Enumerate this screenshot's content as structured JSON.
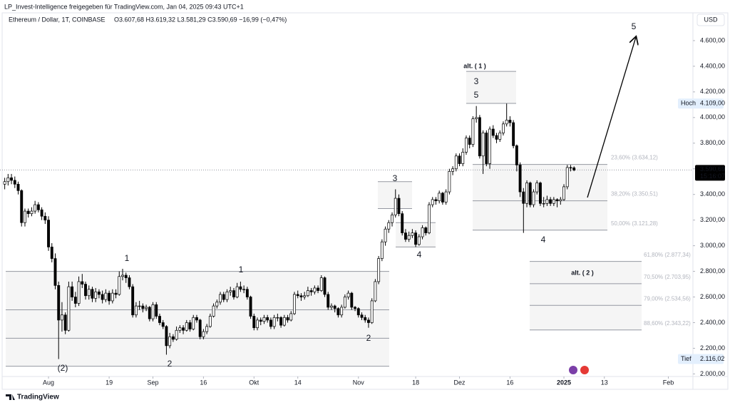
{
  "header": {
    "publisher": "LP_Invest-Intelligence freigegeben für TradingView.com, Jan 04, 2025 09:43 UTC+1",
    "footer": "TradingView"
  },
  "chart_data": {
    "type": "candlestick",
    "title": "Ethereum / Dollar, 1T, COINBASE",
    "ohlc_text": "O3.607,68  H3.619,32  L3.581,29  C3.590,69  −16,99 (−0,47%)",
    "currency": "USD",
    "up_color": "#ffffff",
    "down_color": "#000000",
    "outline_color": "#000000",
    "xlim": [
      -1.4,
      204.3
    ],
    "xticks": [
      {
        "value": 13,
        "label": "Aug"
      },
      {
        "value": 31,
        "label": "19"
      },
      {
        "value": 44,
        "label": "Sep"
      },
      {
        "value": 59,
        "label": "16"
      },
      {
        "value": 74,
        "label": "Okt"
      },
      {
        "value": 87,
        "label": "14"
      },
      {
        "value": 105,
        "label": "Nov"
      },
      {
        "value": 122,
        "label": "18"
      },
      {
        "value": 135,
        "label": "Dez"
      },
      {
        "value": 150,
        "label": "16"
      },
      {
        "value": 166,
        "label": "2025"
      },
      {
        "value": 178,
        "label": "13"
      },
      {
        "value": 197,
        "label": "Feb"
      }
    ],
    "ylim": [
      1980,
      4800
    ],
    "yticks": [
      {
        "value": 2000,
        "label": "2.000,00"
      },
      {
        "value": 2200,
        "label": "2.200,00"
      },
      {
        "value": 2400,
        "label": "2.400,00"
      },
      {
        "value": 2600,
        "label": "2.600,00"
      },
      {
        "value": 2800,
        "label": "2.800,00"
      },
      {
        "value": 3000,
        "label": "3.000,00"
      },
      {
        "value": 3200,
        "label": "3.200,00"
      },
      {
        "value": 3400,
        "label": "3.400,00"
      },
      {
        "value": 3600,
        "label": "3.600,00"
      },
      {
        "value": 3800,
        "label": "3.800,00"
      },
      {
        "value": 4000,
        "label": "4.000,00"
      },
      {
        "value": 4200,
        "label": "4.200,00"
      },
      {
        "value": 4400,
        "label": "4.400,00"
      },
      {
        "value": 4600,
        "label": "4.600,00"
      }
    ],
    "high": {
      "label": "Hoch",
      "value": 4109,
      "value_label": "4.109,00"
    },
    "low": {
      "label": "Tief",
      "value": 2116.02,
      "value_label": "2.116,02"
    },
    "last": {
      "value": 3590.69,
      "value_label": "3.590,69",
      "countdown": "15:16:07"
    },
    "fib_levels": [
      {
        "value": 3634.12,
        "label": "23,60% (3.634,12)"
      },
      {
        "value": 3350.51,
        "label": "38,20% (3.350,51)"
      },
      {
        "value": 3121.28,
        "label": "50,00% (3.121,28)"
      },
      {
        "value": 2877.34,
        "label": "61,80% (2.877,34)"
      },
      {
        "value": 2703.95,
        "label": "70,50% (2.703,95)"
      },
      {
        "value": 2534.56,
        "label": "79,00% (2.534,56)"
      },
      {
        "value": 2343.22,
        "label": "88,60% (2.343,22)"
      }
    ],
    "zones": [
      [
        2800,
        2500,
        2278,
        2060
      ],
      [
        3500,
        3290
      ],
      [
        3180,
        2990
      ],
      [
        4360,
        4110
      ]
    ],
    "annotations": [
      {
        "text": "(2)",
        "color": "#7b3fa8"
      },
      {
        "text": "1",
        "color": "#e53935"
      },
      {
        "text": "2",
        "color": "#e53935"
      },
      {
        "text": "1",
        "color": "#f59c1a"
      },
      {
        "text": "2",
        "color": "#f59c1a"
      },
      {
        "text": "3",
        "color": "#f59c1a"
      },
      {
        "text": "4",
        "color": "#f59c1a"
      },
      {
        "text": "alt. ( 1 )",
        "color": "#555555"
      },
      {
        "text": "3",
        "color": "#e53935"
      },
      {
        "text": "5",
        "color": "#f59c1a"
      },
      {
        "text": "4",
        "color": "#e53935"
      },
      {
        "text": "5",
        "color": "#e53935"
      },
      {
        "text": "alt. ( 2 )",
        "color": "#555555"
      }
    ],
    "candles": [
      [
        3480,
        3530,
        3440,
        3500
      ],
      [
        3500,
        3560,
        3470,
        3530
      ],
      [
        3530,
        3560,
        3480,
        3510
      ],
      [
        3510,
        3540,
        3450,
        3480
      ],
      [
        3480,
        3500,
        3400,
        3430
      ],
      [
        3430,
        3440,
        3150,
        3180
      ],
      [
        3180,
        3290,
        3150,
        3270
      ],
      [
        3270,
        3290,
        3220,
        3250
      ],
      [
        3250,
        3300,
        3230,
        3270
      ],
      [
        3270,
        3350,
        3250,
        3320
      ],
      [
        3320,
        3340,
        3260,
        3280
      ],
      [
        3280,
        3300,
        3200,
        3230
      ],
      [
        3230,
        3260,
        3170,
        3200
      ],
      [
        3200,
        3230,
        2960,
        2990
      ],
      [
        2990,
        3020,
        2870,
        2900
      ],
      [
        2900,
        2940,
        2660,
        2690
      ],
      [
        2690,
        2720,
        2116.02,
        2420
      ],
      [
        2420,
        2560,
        2330,
        2460
      ],
      [
        2460,
        2480,
        2310,
        2340
      ],
      [
        2340,
        2720,
        2330,
        2680
      ],
      [
        2680,
        2720,
        2570,
        2600
      ],
      [
        2600,
        2640,
        2520,
        2550
      ],
      [
        2550,
        2760,
        2530,
        2720
      ],
      [
        2720,
        2780,
        2670,
        2700
      ],
      [
        2700,
        2720,
        2580,
        2610
      ],
      [
        2610,
        2690,
        2580,
        2660
      ],
      [
        2660,
        2680,
        2560,
        2590
      ],
      [
        2590,
        2670,
        2560,
        2640
      ],
      [
        2640,
        2660,
        2590,
        2620
      ],
      [
        2620,
        2650,
        2550,
        2580
      ],
      [
        2580,
        2660,
        2560,
        2630
      ],
      [
        2630,
        2650,
        2540,
        2570
      ],
      [
        2570,
        2660,
        2550,
        2630
      ],
      [
        2630,
        2660,
        2590,
        2620
      ],
      [
        2620,
        2800,
        2610,
        2760
      ],
      [
        2760,
        2820,
        2730,
        2770
      ],
      [
        2770,
        2790,
        2710,
        2750
      ],
      [
        2750,
        2770,
        2660,
        2680
      ],
      [
        2680,
        2700,
        2440,
        2460
      ],
      [
        2460,
        2560,
        2440,
        2530
      ],
      [
        2530,
        2570,
        2500,
        2530
      ],
      [
        2530,
        2550,
        2480,
        2510
      ],
      [
        2510,
        2540,
        2490,
        2520
      ],
      [
        2520,
        2530,
        2410,
        2430
      ],
      [
        2430,
        2560,
        2410,
        2540
      ],
      [
        2540,
        2560,
        2430,
        2450
      ],
      [
        2450,
        2470,
        2380,
        2400
      ],
      [
        2400,
        2420,
        2350,
        2370
      ],
      [
        2370,
        2380,
        2150,
        2220
      ],
      [
        2220,
        2320,
        2200,
        2290
      ],
      [
        2290,
        2310,
        2250,
        2270
      ],
      [
        2270,
        2370,
        2260,
        2340
      ],
      [
        2340,
        2380,
        2320,
        2360
      ],
      [
        2360,
        2380,
        2310,
        2340
      ],
      [
        2340,
        2420,
        2330,
        2400
      ],
      [
        2400,
        2420,
        2330,
        2350
      ],
      [
        2350,
        2460,
        2340,
        2440
      ],
      [
        2440,
        2460,
        2400,
        2420
      ],
      [
        2420,
        2430,
        2270,
        2290
      ],
      [
        2290,
        2350,
        2270,
        2330
      ],
      [
        2330,
        2390,
        2310,
        2370
      ],
      [
        2370,
        2470,
        2360,
        2450
      ],
      [
        2450,
        2550,
        2440,
        2530
      ],
      [
        2530,
        2580,
        2510,
        2560
      ],
      [
        2560,
        2640,
        2540,
        2620
      ],
      [
        2620,
        2640,
        2560,
        2580
      ],
      [
        2580,
        2660,
        2560,
        2640
      ],
      [
        2640,
        2680,
        2610,
        2650
      ],
      [
        2650,
        2670,
        2580,
        2600
      ],
      [
        2600,
        2710,
        2590,
        2680
      ],
      [
        2680,
        2720,
        2640,
        2660
      ],
      [
        2660,
        2690,
        2630,
        2660
      ],
      [
        2660,
        2680,
        2580,
        2600
      ],
      [
        2600,
        2610,
        2430,
        2450
      ],
      [
        2450,
        2470,
        2340,
        2360
      ],
      [
        2360,
        2440,
        2340,
        2420
      ],
      [
        2420,
        2440,
        2380,
        2410
      ],
      [
        2410,
        2460,
        2390,
        2440
      ],
      [
        2440,
        2460,
        2400,
        2420
      ],
      [
        2420,
        2440,
        2350,
        2370
      ],
      [
        2370,
        2460,
        2350,
        2440
      ],
      [
        2440,
        2470,
        2410,
        2440
      ],
      [
        2440,
        2450,
        2360,
        2380
      ],
      [
        2380,
        2460,
        2370,
        2440
      ],
      [
        2440,
        2460,
        2400,
        2420
      ],
      [
        2420,
        2490,
        2410,
        2470
      ],
      [
        2470,
        2640,
        2460,
        2620
      ],
      [
        2620,
        2650,
        2590,
        2610
      ],
      [
        2610,
        2630,
        2570,
        2600
      ],
      [
        2600,
        2640,
        2580,
        2610
      ],
      [
        2610,
        2680,
        2600,
        2650
      ],
      [
        2650,
        2670,
        2610,
        2640
      ],
      [
        2640,
        2690,
        2620,
        2670
      ],
      [
        2670,
        2690,
        2630,
        2650
      ],
      [
        2650,
        2770,
        2640,
        2750
      ],
      [
        2750,
        2760,
        2600,
        2620
      ],
      [
        2620,
        2640,
        2500,
        2520
      ],
      [
        2520,
        2550,
        2500,
        2530
      ],
      [
        2530,
        2540,
        2480,
        2510
      ],
      [
        2510,
        2520,
        2440,
        2460
      ],
      [
        2460,
        2540,
        2440,
        2520
      ],
      [
        2520,
        2620,
        2510,
        2600
      ],
      [
        2600,
        2650,
        2580,
        2630
      ],
      [
        2630,
        2640,
        2500,
        2520
      ],
      [
        2520,
        2530,
        2490,
        2510
      ],
      [
        2510,
        2520,
        2440,
        2460
      ],
      [
        2460,
        2480,
        2420,
        2440
      ],
      [
        2440,
        2460,
        2400,
        2420
      ],
      [
        2420,
        2440,
        2360,
        2400
      ],
      [
        2400,
        2590,
        2390,
        2570
      ],
      [
        2570,
        2740,
        2560,
        2720
      ],
      [
        2720,
        2920,
        2700,
        2900
      ],
      [
        2900,
        3050,
        2880,
        3030
      ],
      [
        3030,
        3150,
        3000,
        3130
      ],
      [
        3130,
        3200,
        3100,
        3180
      ],
      [
        3180,
        3260,
        3150,
        3240
      ],
      [
        3240,
        3440,
        3220,
        3370
      ],
      [
        3370,
        3400,
        3230,
        3250
      ],
      [
        3250,
        3270,
        3080,
        3100
      ],
      [
        3100,
        3130,
        3030,
        3050
      ],
      [
        3050,
        3110,
        3030,
        3080
      ],
      [
        3080,
        3130,
        3060,
        3100
      ],
      [
        3100,
        3120,
        2990,
        3010
      ],
      [
        3010,
        3090,
        3000,
        3070
      ],
      [
        3070,
        3160,
        3050,
        3140
      ],
      [
        3140,
        3150,
        3080,
        3100
      ],
      [
        3100,
        3340,
        3090,
        3320
      ],
      [
        3320,
        3380,
        3300,
        3360
      ],
      [
        3360,
        3380,
        3320,
        3350
      ],
      [
        3350,
        3430,
        3330,
        3410
      ],
      [
        3410,
        3420,
        3320,
        3340
      ],
      [
        3340,
        3440,
        3320,
        3420
      ],
      [
        3420,
        3600,
        3400,
        3580
      ],
      [
        3580,
        3620,
        3550,
        3600
      ],
      [
        3600,
        3720,
        3580,
        3700
      ],
      [
        3700,
        3720,
        3620,
        3640
      ],
      [
        3640,
        3760,
        3620,
        3730
      ],
      [
        3730,
        3860,
        3710,
        3840
      ],
      [
        3840,
        3860,
        3760,
        3790
      ],
      [
        3790,
        4010,
        3770,
        3990
      ],
      [
        3990,
        4090,
        3960,
        4000
      ],
      [
        4000,
        4020,
        3680,
        3700
      ],
      [
        3700,
        3900,
        3560,
        3880
      ],
      [
        3880,
        3900,
        3620,
        3640
      ],
      [
        3640,
        3930,
        3600,
        3910
      ],
      [
        3910,
        3940,
        3840,
        3860
      ],
      [
        3860,
        3880,
        3800,
        3830
      ],
      [
        3830,
        3900,
        3810,
        3880
      ],
      [
        3880,
        3970,
        3860,
        3950
      ],
      [
        3950,
        4109,
        3930,
        3980
      ],
      [
        3980,
        4010,
        3930,
        3960
      ],
      [
        3960,
        3980,
        3760,
        3780
      ],
      [
        3780,
        3790,
        3580,
        3630
      ],
      [
        3630,
        3650,
        3380,
        3420
      ],
      [
        3420,
        3450,
        3100,
        3330
      ],
      [
        3330,
        3510,
        3300,
        3490
      ],
      [
        3490,
        3500,
        3300,
        3320
      ],
      [
        3320,
        3440,
        3300,
        3420
      ],
      [
        3420,
        3510,
        3400,
        3490
      ],
      [
        3490,
        3500,
        3310,
        3330
      ],
      [
        3330,
        3380,
        3300,
        3330
      ],
      [
        3330,
        3390,
        3310,
        3360
      ],
      [
        3360,
        3380,
        3310,
        3330
      ],
      [
        3330,
        3380,
        3310,
        3360
      ],
      [
        3360,
        3370,
        3300,
        3350
      ],
      [
        3350,
        3380,
        3320,
        3360
      ],
      [
        3360,
        3480,
        3350,
        3460
      ],
      [
        3460,
        3630,
        3440,
        3610
      ],
      [
        3610,
        3630,
        3580,
        3607.68
      ],
      [
        3607.68,
        3619.32,
        3581.29,
        3590.69
      ]
    ]
  }
}
